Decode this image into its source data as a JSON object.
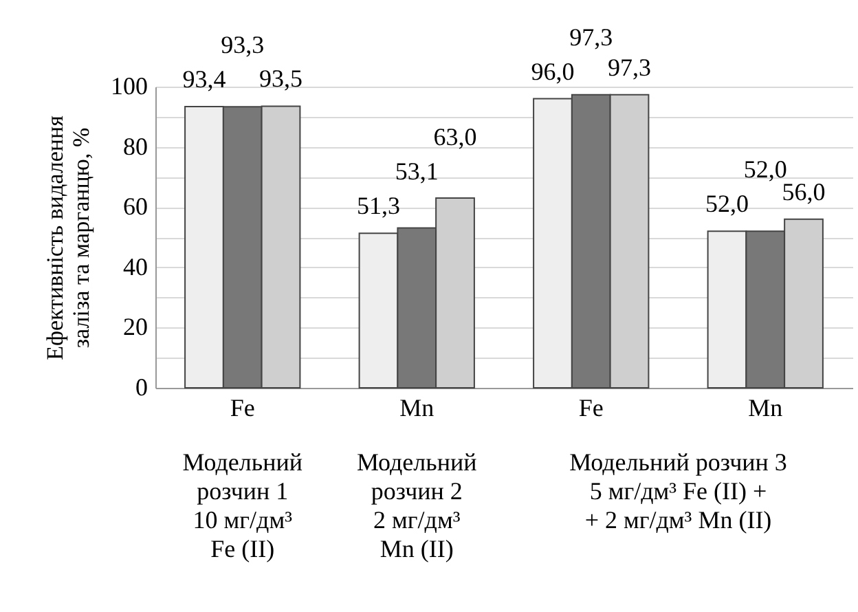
{
  "chart_data": {
    "type": "bar",
    "ylabel": "Ефективність видалення заліза та марганцю, %",
    "categories": [
      "Fe",
      "Mn",
      "Fe",
      "Mn"
    ],
    "series": [
      {
        "color": "#eeeeee",
        "values": [
          93.4,
          51.3,
          96.0,
          52.0
        ],
        "value_labels": [
          "93,4",
          "51,3",
          "96,0",
          "52,0"
        ]
      },
      {
        "color": "#787878",
        "values": [
          93.3,
          53.1,
          97.3,
          52.0
        ],
        "value_labels": [
          "93,3",
          "53,1",
          "97,3",
          "52,0"
        ]
      },
      {
        "color": "#cfcfcf",
        "values": [
          93.5,
          63.0,
          97.3,
          56.0
        ],
        "value_labels": [
          "93,5",
          "63,0",
          "97,3",
          "56,0"
        ]
      }
    ],
    "ylim": [
      0,
      100
    ],
    "yticks": [
      0,
      {
        "value": 10,
        "label": null
      },
      20,
      {
        "value": 30,
        "label": null
      },
      40,
      {
        "value": 50,
        "label": null
      },
      60,
      {
        "value": 70,
        "label": null
      },
      80,
      {
        "value": 90,
        "label": null
      },
      100
    ],
    "grid": true,
    "annotations": [
      "Модельний\nрозчин 1\n10 мг/дм³\nFe (II)",
      "Модельний\nрозчин 2\n2 мг/дм³\nMn (II)",
      "Модельний розчин 3\n5 мг/дм³ Fe (II) +\n+ 2 мг/дм³ Mn (II)"
    ]
  }
}
